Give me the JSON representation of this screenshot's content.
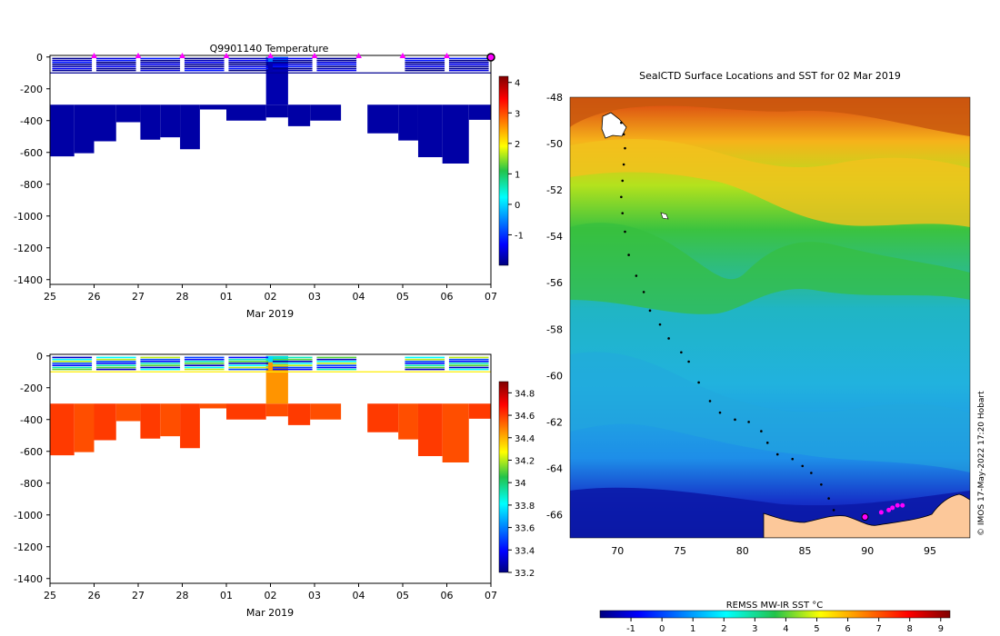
{
  "credit": "© IMOS 17-May-2022 17:20 Hobart",
  "chart_data": [
    {
      "type": "heatmap",
      "title": "Q9901140  Temperature",
      "xlabel": "Mar 2019",
      "ylabel": "",
      "x_tick_labels": [
        "25",
        "26",
        "27",
        "28",
        "01",
        "02",
        "03",
        "04",
        "05",
        "06",
        "07"
      ],
      "y_tick_labels": [
        "0",
        "-200",
        "-400",
        "-600",
        "-800",
        "-1000",
        "-1200",
        "-1400"
      ],
      "y_ticks": [
        0,
        -200,
        -400,
        -600,
        -800,
        -1000,
        -1200,
        -1400
      ],
      "ylim": [
        -1430,
        10
      ],
      "xlim": [
        0,
        10
      ],
      "colorbar": {
        "min": -2,
        "max": 4.2,
        "tick_values": [
          4,
          3,
          2,
          1,
          0,
          -1
        ],
        "tick_labels": [
          "4",
          "3",
          "2",
          "1",
          "0",
          "-1"
        ]
      },
      "profile_markers_x": [
        1,
        2,
        3,
        4,
        5,
        6,
        7,
        8,
        9,
        10
      ],
      "profiles": [
        {
          "x0": 0,
          "x1": 0.55,
          "bottom": -625,
          "deep_value": -1.8
        },
        {
          "x0": 0.55,
          "x1": 1.0,
          "bottom": -605,
          "deep_value": -1.8
        },
        {
          "x0": 1.0,
          "x1": 1.5,
          "bottom": -530,
          "deep_value": -1.8
        },
        {
          "x0": 1.5,
          "x1": 2.05,
          "bottom": -410,
          "deep_value": -1.8
        },
        {
          "x0": 2.05,
          "x1": 2.5,
          "bottom": -520,
          "deep_value": -1.8
        },
        {
          "x0": 2.5,
          "x1": 2.95,
          "bottom": -505,
          "deep_value": -1.8
        },
        {
          "x0": 2.95,
          "x1": 3.4,
          "bottom": -580,
          "deep_value": -1.8
        },
        {
          "x0": 3.4,
          "x1": 4.0,
          "bottom": -330,
          "deep_value": -1.8
        },
        {
          "x0": 4.0,
          "x1": 4.9,
          "bottom": -400,
          "deep_value": -1.8
        },
        {
          "x0": 4.9,
          "x1": 5.4,
          "bottom": -380,
          "deep_value": -1.8
        },
        {
          "x0": 5.4,
          "x1": 5.9,
          "bottom": -435,
          "deep_value": -1.8
        },
        {
          "x0": 5.9,
          "x1": 6.6,
          "bottom": -400,
          "deep_value": -1.8
        },
        {
          "x0": 7.2,
          "x1": 7.9,
          "bottom": -480,
          "deep_value": -1.8
        },
        {
          "x0": 7.9,
          "x1": 8.35,
          "bottom": -525,
          "deep_value": -1.8
        },
        {
          "x0": 8.35,
          "x1": 8.9,
          "bottom": -630,
          "deep_value": -1.8
        },
        {
          "x0": 8.9,
          "x1": 9.5,
          "bottom": -670,
          "deep_value": -1.8
        },
        {
          "x0": 9.5,
          "x1": 10.0,
          "bottom": -395,
          "deep_value": -1.8
        }
      ]
    },
    {
      "type": "heatmap",
      "title": "",
      "xlabel": "Mar 2019",
      "ylabel": "",
      "x_tick_labels": [
        "25",
        "26",
        "27",
        "28",
        "01",
        "02",
        "03",
        "04",
        "05",
        "06",
        "07"
      ],
      "y_tick_labels": [
        "0",
        "-200",
        "-400",
        "-600",
        "-800",
        "-1000",
        "-1200",
        "-1400"
      ],
      "y_ticks": [
        0,
        -200,
        -400,
        -600,
        -800,
        -1000,
        -1200,
        -1400
      ],
      "ylim": [
        -1430,
        10
      ],
      "xlim": [
        0,
        10
      ],
      "colorbar": {
        "min": 33.2,
        "max": 34.9,
        "tick_values": [
          34.8,
          34.6,
          34.4,
          34.2,
          34.0,
          33.8,
          33.6,
          33.4,
          33.2
        ],
        "tick_labels": [
          "34.8",
          "34.6",
          "34.4",
          "34.2",
          "34",
          "33.8",
          "33.6",
          "33.4",
          "33.2"
        ]
      },
      "deep_value": 34.6
    },
    {
      "type": "heatmap",
      "title": "SealCTD Surface Locations and SST for 02 Mar 2019",
      "xlabel": "",
      "ylabel": "",
      "x_tick_labels": [
        "70",
        "75",
        "80",
        "85",
        "90",
        "95"
      ],
      "x_ticks": [
        70,
        75,
        80,
        85,
        90,
        95
      ],
      "y_tick_labels": [
        "-48",
        "-50",
        "-52",
        "-54",
        "-56",
        "-58",
        "-60",
        "-62",
        "-64",
        "-66"
      ],
      "y_ticks": [
        -48,
        -50,
        -52,
        -54,
        -56,
        -58,
        -60,
        -62,
        -64,
        -66
      ],
      "xlim": [
        66.2,
        98.2
      ],
      "ylim": [
        -67,
        -48
      ],
      "colorbar": {
        "label": "REMSS MW-IR SST °C",
        "min": -2,
        "max": 9.3,
        "tick_values": [
          -1,
          0,
          1,
          2,
          3,
          4,
          5,
          6,
          7,
          8,
          9
        ],
        "tick_labels": [
          "-1",
          "0",
          "1",
          "2",
          "3",
          "4",
          "5",
          "6",
          "7",
          "8",
          "9"
        ]
      },
      "track": [
        [
          70.3,
          -49.1
        ],
        [
          70.5,
          -49.6
        ],
        [
          70.6,
          -50.2
        ],
        [
          70.5,
          -50.9
        ],
        [
          70.4,
          -51.6
        ],
        [
          70.3,
          -52.3
        ],
        [
          70.4,
          -53.0
        ],
        [
          70.6,
          -53.8
        ],
        [
          70.9,
          -54.8
        ],
        [
          71.5,
          -55.7
        ],
        [
          72.1,
          -56.4
        ],
        [
          72.6,
          -57.2
        ],
        [
          73.4,
          -57.8
        ],
        [
          74.1,
          -58.4
        ],
        [
          75.1,
          -59.0
        ],
        [
          75.7,
          -59.4
        ],
        [
          76.5,
          -60.3
        ],
        [
          77.4,
          -61.1
        ],
        [
          78.2,
          -61.6
        ],
        [
          79.4,
          -61.9
        ],
        [
          80.5,
          -62.0
        ],
        [
          81.5,
          -62.4
        ],
        [
          82.0,
          -62.9
        ],
        [
          82.8,
          -63.4
        ],
        [
          84.0,
          -63.6
        ],
        [
          84.8,
          -63.9
        ],
        [
          85.5,
          -64.2
        ],
        [
          86.3,
          -64.7
        ],
        [
          86.9,
          -65.3
        ],
        [
          87.3,
          -65.8
        ]
      ],
      "positions": [
        [
          89.8,
          -66.1
        ],
        [
          91.1,
          -65.9
        ],
        [
          91.7,
          -65.8
        ],
        [
          92.0,
          -65.7
        ],
        [
          92.4,
          -65.6
        ],
        [
          92.8,
          -65.6
        ]
      ],
      "latest_position": [
        89.8,
        -66.1
      ]
    }
  ]
}
